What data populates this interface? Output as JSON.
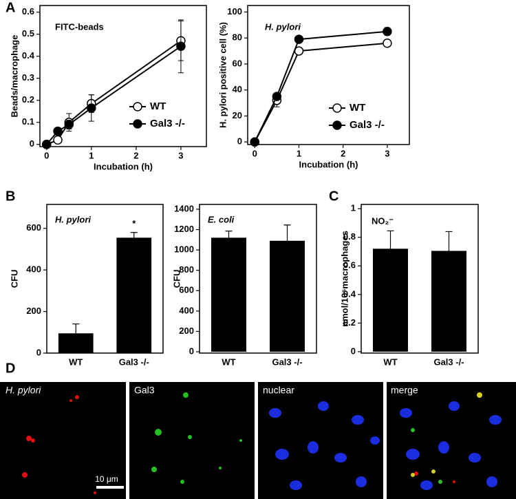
{
  "panel_labels": [
    "A",
    "B",
    "C",
    "D"
  ],
  "chart_data": [
    {
      "type": "line",
      "title": "FITC-beads",
      "xlabel": "Incubation (h)",
      "ylabel": "Beads/macrophage",
      "x": [
        0,
        0.25,
        0.5,
        1,
        3
      ],
      "xlim": [
        -0.15,
        3.57
      ],
      "xticks": [
        0,
        1,
        2,
        3
      ],
      "ylim": [
        -0.01,
        0.63
      ],
      "yticks": [
        0,
        0.1,
        0.2,
        0.3,
        0.4,
        0.5,
        0.6
      ],
      "series": [
        {
          "name": "WT",
          "color": "#ffffff",
          "values": [
            0,
            0.02,
            0.1,
            0.185,
            0.47
          ],
          "errors": [
            0,
            0.01,
            0.04,
            0.04,
            0.09
          ]
        },
        {
          "name": "Gal3 -/-",
          "color": "#000000",
          "values": [
            0,
            0.06,
            0.09,
            0.165,
            0.445
          ],
          "errors": [
            0,
            0.01,
            0.02,
            0.06,
            0.12
          ]
        }
      ]
    },
    {
      "type": "line",
      "title": "H. pylori",
      "xlabel": "Incubation (h)",
      "ylabel": "H. pylori positive cell (%)",
      "x": [
        0,
        0.5,
        1,
        3
      ],
      "xlim": [
        -0.16,
        3.5
      ],
      "xticks": [
        0,
        1,
        2,
        3
      ],
      "ylim": [
        -2,
        105
      ],
      "yticks": [
        0,
        20,
        40,
        60,
        80,
        100
      ],
      "series": [
        {
          "name": "WT",
          "color": "#ffffff",
          "values": [
            0,
            32,
            70,
            76
          ],
          "errors": [
            0,
            5,
            1,
            2
          ]
        },
        {
          "name": "Gal3 -/-",
          "color": "#000000",
          "values": [
            0,
            35,
            79,
            85
          ],
          "errors": [
            0,
            2,
            2,
            3
          ]
        }
      ]
    },
    {
      "type": "bar",
      "title": "H. pylori",
      "ylabel": "CFU",
      "annotation": "*",
      "categories": [
        "WT",
        "Gal3 -/-"
      ],
      "values": [
        95,
        555
      ],
      "errors": [
        45,
        25
      ],
      "color": "#000000",
      "ylim": [
        0,
        715
      ],
      "yticks": [
        0,
        200,
        400,
        600
      ]
    },
    {
      "type": "bar",
      "title": "E. coli",
      "ylabel": "CFU",
      "categories": [
        "WT",
        "Gal3 -/-"
      ],
      "values": [
        1120,
        1090
      ],
      "errors": [
        65,
        155
      ],
      "color": "#000000",
      "ylim": [
        -13,
        1447
      ],
      "yticks": [
        0,
        200,
        400,
        600,
        800,
        1000,
        1200,
        1400
      ]
    },
    {
      "type": "bar",
      "title": "NO₂⁻",
      "ylabel": "nmol/10⁶macrophages",
      "categories": [
        "WT",
        "Gal3 -/-"
      ],
      "values": [
        0.72,
        0.705
      ],
      "errors": [
        0.125,
        0.135
      ],
      "color": "#000000",
      "ylim": [
        -0.01,
        1.03
      ],
      "yticks": [
        0,
        0.2,
        0.4,
        0.6,
        0.8,
        1
      ]
    }
  ],
  "images": {
    "labels": [
      "H. pylori",
      "Gal3",
      "nuclear",
      "merge"
    ],
    "scale_bar": "10 μm"
  }
}
